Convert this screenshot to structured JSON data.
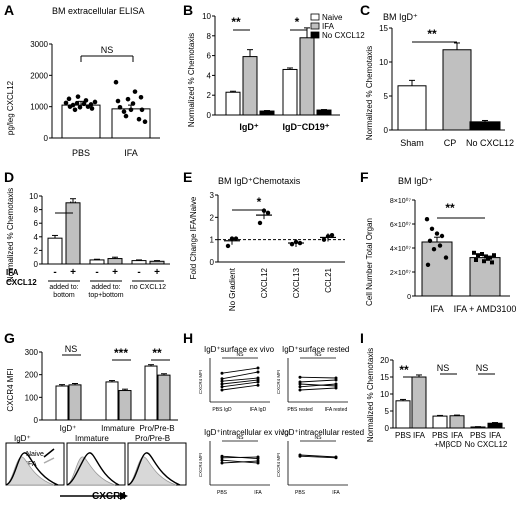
{
  "panel_letters": {
    "a": "A",
    "b": "B",
    "c": "C",
    "d": "D",
    "e": "E",
    "f": "F",
    "g": "G",
    "h": "H",
    "i": "I"
  },
  "sig": {
    "ns": "NS",
    "two": "**",
    "one": "*",
    "three": "***"
  },
  "chart_data": [
    {
      "panel": "A",
      "type": "bar",
      "title": "BM extracellular ELISA",
      "ylabel": "pg/leg CXCL12",
      "categories": [
        "PBS",
        "IFA"
      ],
      "values": [
        1050,
        930
      ],
      "ylim": [
        0,
        3000
      ],
      "yticks": [
        "0",
        "1000",
        "2000",
        "3000"
      ]
    },
    {
      "panel": "B",
      "type": "bar",
      "ylabel": "Normalized % Chemotaxis",
      "groups": [
        "IgD⁺",
        "IgD⁻CD19⁺"
      ],
      "legend": [
        "Naive",
        "IFA",
        "No CXCL12"
      ],
      "series": [
        {
          "name": "Naive",
          "values": [
            2.3,
            4.6
          ]
        },
        {
          "name": "IFA",
          "values": [
            5.9,
            7.8
          ]
        },
        {
          "name": "No CXCL12",
          "values": [
            0.4,
            0.5
          ]
        }
      ],
      "ylim": [
        0,
        10
      ],
      "yticks": [
        "0",
        "2",
        "4",
        "6",
        "8",
        "10"
      ]
    },
    {
      "panel": "C",
      "type": "bar",
      "title": "BM IgD⁺",
      "ylabel": "Normalized % Chemotaxis",
      "categories": [
        "Sham",
        "CP",
        "No CXCL12"
      ],
      "values": [
        6.5,
        11.8,
        1.2
      ],
      "ylim": [
        0,
        15
      ],
      "yticks": [
        "0",
        "5",
        "10",
        "15"
      ]
    },
    {
      "panel": "D",
      "type": "bar",
      "ylabel": "Normalized % Chemotaxis",
      "row_labels": [
        "IFA",
        "CXCL12"
      ],
      "ifa": [
        "-",
        "+",
        "-",
        "+",
        "-",
        "+"
      ],
      "group_labels": [
        "added to: bottom",
        "added to: top+bottom",
        "no CXCL12"
      ],
      "values": [
        3.8,
        9.0,
        0.6,
        0.8,
        0.5,
        0.4
      ],
      "ylim": [
        0,
        10
      ],
      "yticks": [
        "0",
        "2",
        "4",
        "6",
        "8",
        "10"
      ]
    },
    {
      "panel": "E",
      "type": "scatter",
      "title": "BM IgD⁺Chemotaxis",
      "ylabel": "Fold Change IFA/Naive",
      "categories": [
        "No Gradient",
        "CXCL12",
        "CXCL13",
        "CCL21"
      ],
      "means": [
        0.95,
        2.1,
        0.85,
        1.1
      ],
      "ylim": [
        0,
        3
      ],
      "yticks": [
        "0",
        "1",
        "2",
        "3"
      ]
    },
    {
      "panel": "F",
      "type": "bar",
      "title": "BM IgD⁺",
      "ylabel": "Cell Number Total Organ",
      "categories": [
        "IFA",
        "IFA + AMD3100"
      ],
      "values": [
        45000000.0,
        32000000.0
      ],
      "ylim": [
        0,
        80000000.0
      ],
      "yticks": [
        "0",
        "2×10⁰⁷",
        "4×10⁰⁷",
        "6×10⁰⁷",
        "8×10⁰⁷"
      ]
    },
    {
      "panel": "G",
      "type": "bar",
      "ylabel": "CXCR4 MFI",
      "groups": [
        "IgD⁺",
        "Immature",
        "Pro/Pre-B"
      ],
      "series": [
        {
          "name": "Naive",
          "values": [
            150,
            168,
            238
          ]
        },
        {
          "name": "IFA",
          "values": [
            155,
            130,
            198
          ]
        }
      ],
      "ylim": [
        0,
        300
      ],
      "yticks": [
        "0",
        "100",
        "200",
        "300"
      ]
    },
    {
      "panel": "G-histogram",
      "type": "line",
      "titles": [
        "IgD⁺",
        "Immature",
        "Pro/Pre-B"
      ],
      "legend": [
        "Naive",
        "IFA"
      ],
      "xlabel": "CXCR4"
    },
    {
      "panel": "H",
      "type": "line",
      "subpanels": [
        {
          "title": "IgD⁺surface ex vivo",
          "ylabel": "CXCR4 MFI",
          "x": [
            "PBS IgD",
            "IFA IgD"
          ],
          "series": [
            [
              0.3,
              0.42
            ],
            [
              0.38,
              0.5
            ],
            [
              0.45,
              0.55
            ],
            [
              0.52,
              0.6
            ],
            [
              0.58,
              0.75
            ],
            [
              0.72,
              0.85
            ]
          ]
        },
        {
          "title": "IgD⁺surface rested",
          "ylabel": "CXCR4 MFI",
          "x": [
            "PBS rested",
            "IFA rested"
          ],
          "series": [
            [
              0.3,
              0.35
            ],
            [
              0.38,
              0.45
            ],
            [
              0.45,
              0.4
            ],
            [
              0.5,
              0.55
            ],
            [
              0.62,
              0.6
            ]
          ]
        },
        {
          "title": "IgD⁺intracellular ex vivo",
          "ylabel": "CXCR4 MFI",
          "x": [
            "PBS",
            "IFA"
          ],
          "series": [
            [
              0.55,
              0.6
            ],
            [
              0.62,
              0.55
            ],
            [
              0.68,
              0.7
            ],
            [
              0.72,
              0.66
            ]
          ]
        },
        {
          "title": "IgD⁺intracellular rested",
          "ylabel": "CXCR4 MFI",
          "x": [
            "PBS",
            "IFA"
          ],
          "series": [
            [
              0.72,
              0.68
            ],
            [
              0.75,
              0.7
            ]
          ]
        }
      ]
    },
    {
      "panel": "I",
      "type": "bar",
      "ylabel": "Normalized % Chemotaxis",
      "categories": [
        "PBS",
        "IFA",
        "PBS",
        "IFA",
        "PBS",
        "IFA"
      ],
      "group_labels": [
        "+MβCD",
        "No CXCL12"
      ],
      "values": [
        8.0,
        15.0,
        3.5,
        3.6,
        0.3,
        1.4
      ],
      "ylim": [
        0,
        20
      ],
      "yticks": [
        "0",
        "5",
        "10",
        "15",
        "20"
      ]
    }
  ],
  "colors": {
    "white": "#ffffff",
    "gray": "#c0c0c0",
    "black": "#000000"
  }
}
